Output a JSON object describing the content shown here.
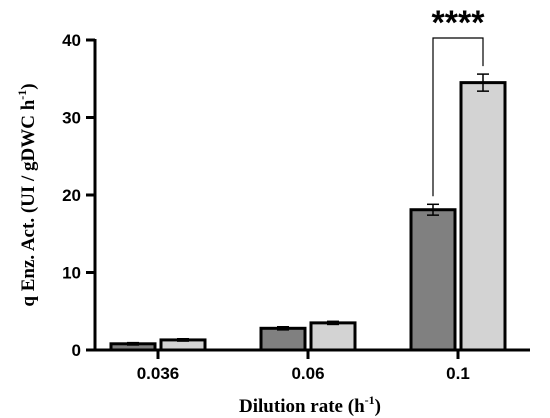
{
  "chart_data": {
    "type": "bar",
    "categories": [
      "0.036",
      "0.06",
      "0.1"
    ],
    "series": [
      {
        "values": [
          0.8,
          2.8,
          18.1
        ],
        "errors": [
          0.15,
          0.2,
          0.7
        ],
        "color": "#808080"
      },
      {
        "values": [
          1.3,
          3.5,
          34.5
        ],
        "errors": [
          0.15,
          0.2,
          1.1
        ],
        "color": "#d3d3d3"
      }
    ],
    "xlabel_main": "Dilution rate (h",
    "xlabel_sup": "-1",
    "xlabel_close": ")",
    "ylabel_main": "q Enz. Act. (UI / gDWC h",
    "ylabel_sup": "-1",
    "ylabel_close": ")",
    "ylim": [
      0,
      40
    ],
    "yticks": [
      "0",
      "10",
      "20",
      "30",
      "40"
    ],
    "grid": false,
    "legend": "none",
    "annotations": [
      {
        "label": "****",
        "category": "0.1",
        "between_series": [
          0,
          1
        ]
      }
    ]
  }
}
